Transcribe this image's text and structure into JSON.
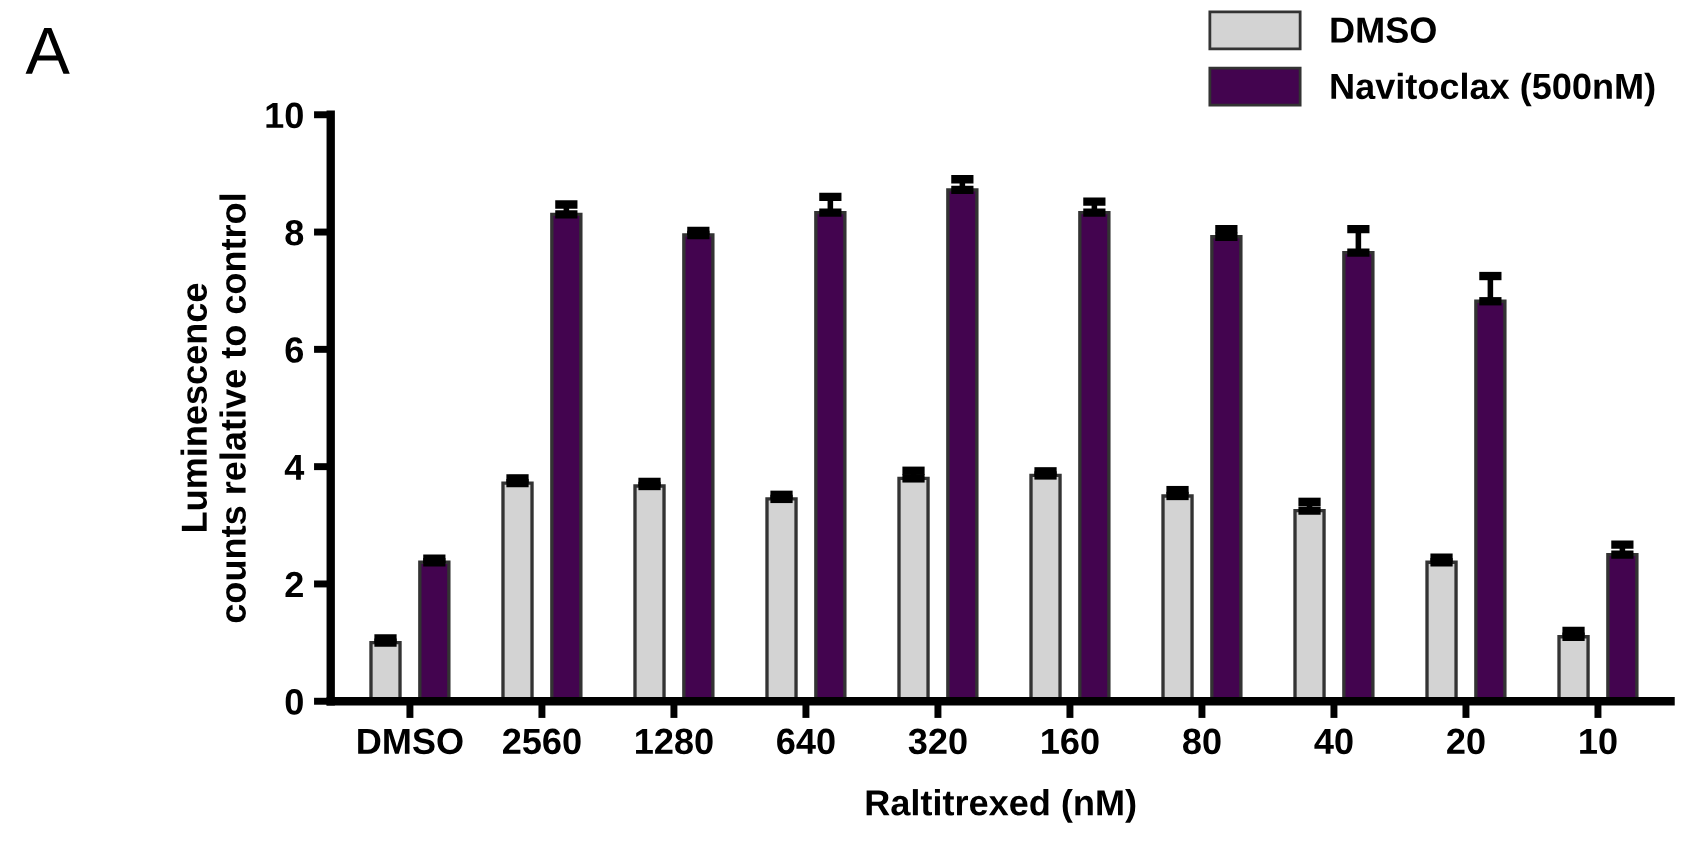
{
  "chart_data": {
    "type": "bar",
    "xlabel": "Raltitrexed (nM)",
    "ylabel": "Luminescence\ncounts relative to control",
    "categories": [
      "DMSO",
      "2560",
      "1280",
      "640",
      "320",
      "160",
      "80",
      "40",
      "20",
      "10"
    ],
    "series": [
      {
        "name": "DMSO",
        "color": "#d3d3d3",
        "values": [
          1.0,
          3.72,
          3.67,
          3.45,
          3.8,
          3.85,
          3.5,
          3.25,
          2.37,
          1.1
        ],
        "errors": [
          [
            1.0,
            1.07
          ],
          [
            3.72,
            3.8
          ],
          [
            3.67,
            3.74
          ],
          [
            3.45,
            3.52
          ],
          [
            3.8,
            3.93
          ],
          [
            3.85,
            3.92
          ],
          [
            3.5,
            3.6
          ],
          [
            3.25,
            3.4
          ],
          [
            2.37,
            2.45
          ],
          [
            1.1,
            1.2
          ]
        ]
      },
      {
        "name": "Navitoclax (500nM)",
        "color": "#43044f",
        "values": [
          2.37,
          8.3,
          7.95,
          8.33,
          8.72,
          8.33,
          7.92,
          7.65,
          6.82,
          2.5
        ],
        "errors": [
          [
            2.37,
            2.43
          ],
          [
            8.3,
            8.47
          ],
          [
            7.95,
            8.02
          ],
          [
            8.33,
            8.6
          ],
          [
            8.72,
            8.9
          ],
          [
            8.33,
            8.52
          ],
          [
            7.92,
            8.05
          ],
          [
            7.65,
            8.05
          ],
          [
            6.82,
            7.25
          ],
          [
            2.5,
            2.67
          ]
        ]
      }
    ],
    "ylim": [
      0,
      10
    ],
    "yticks": [
      0,
      2,
      4,
      6,
      8,
      10
    ],
    "grid": false,
    "legend": "top right",
    "annotations": [
      "A"
    ]
  }
}
